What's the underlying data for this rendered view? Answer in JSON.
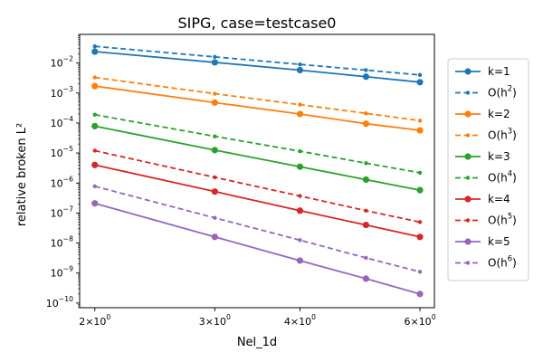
{
  "chart_data": {
    "type": "line",
    "title": "SIPG, case=testcase0",
    "xlabel": "Nel_1d",
    "ylabel": "relative broken L²",
    "xscale": "log",
    "yscale": "log",
    "xlim": [
      1.9,
      6.3
    ],
    "ylim": [
      7e-11,
      0.09
    ],
    "grid": false,
    "legend_position": "right, outside plot",
    "x": [
      2,
      3,
      4,
      5,
      6
    ],
    "x_tick_labels": [
      {
        "value": 2,
        "base": "2",
        "exp": "0"
      },
      {
        "value": 3,
        "base": "3",
        "exp": "0"
      },
      {
        "value": 4,
        "base": "4",
        "exp": "0"
      },
      {
        "value": 6,
        "base": "6",
        "exp": "0"
      }
    ],
    "y_tick_labels": [
      {
        "value": 1e-10,
        "base": "10",
        "exp": "−10"
      },
      {
        "value": 1e-09,
        "base": "10",
        "exp": "−9"
      },
      {
        "value": 1e-08,
        "base": "10",
        "exp": "−8"
      },
      {
        "value": 1e-07,
        "base": "10",
        "exp": "−7"
      },
      {
        "value": 1e-06,
        "base": "10",
        "exp": "−6"
      },
      {
        "value": 1e-05,
        "base": "10",
        "exp": "−5"
      },
      {
        "value": 0.0001,
        "base": "10",
        "exp": "−4"
      },
      {
        "value": 0.001,
        "base": "10",
        "exp": "−3"
      },
      {
        "value": 0.01,
        "base": "10",
        "exp": "−2"
      }
    ],
    "series": [
      {
        "name": "k=1",
        "label_base": "k=1",
        "label_exp": "",
        "color": "#1f77b4",
        "style": "solid",
        "marker": "circle",
        "values": [
          0.024,
          0.0105,
          0.0058,
          0.0035,
          0.0023
        ]
      },
      {
        "name": "O(h²)",
        "label_base": "O(h",
        "label_exp": "2",
        "color": "#1f77b4",
        "style": "dashed",
        "marker": "dot",
        "values": [
          0.036,
          0.016,
          0.009,
          0.0058,
          0.004
        ]
      },
      {
        "name": "k=2",
        "label_base": "k=2",
        "label_exp": "",
        "color": "#ff7f0e",
        "style": "solid",
        "marker": "circle",
        "values": [
          0.0017,
          0.00048,
          0.0002,
          9.5e-05,
          5.7e-05
        ]
      },
      {
        "name": "O(h³)",
        "label_base": "O(h",
        "label_exp": "3",
        "color": "#ff7f0e",
        "style": "dashed",
        "marker": "dot",
        "values": [
          0.0033,
          0.00095,
          0.00041,
          0.00021,
          0.00012
        ]
      },
      {
        "name": "k=3",
        "label_base": "k=3",
        "label_exp": "",
        "color": "#2ca02c",
        "style": "solid",
        "marker": "circle",
        "values": [
          7.9e-05,
          1.25e-05,
          3.5e-06,
          1.3e-06,
          5.8e-07
        ]
      },
      {
        "name": "O(h⁴)",
        "label_base": "O(h",
        "label_exp": "4",
        "color": "#2ca02c",
        "style": "dashed",
        "marker": "dot",
        "values": [
          0.00019,
          3.6e-05,
          1.15e-05,
          4.6e-06,
          2.2e-06
        ]
      },
      {
        "name": "k=4",
        "label_base": "k=4",
        "label_exp": "",
        "color": "#d62728",
        "style": "solid",
        "marker": "circle",
        "values": [
          4e-06,
          5.2e-07,
          1.2e-07,
          4e-08,
          1.6e-08
        ]
      },
      {
        "name": "O(h⁵)",
        "label_base": "O(h",
        "label_exp": "5",
        "color": "#d62728",
        "style": "dashed",
        "marker": "dot",
        "values": [
          1.2e-05,
          1.55e-06,
          3.7e-07,
          1.2e-07,
          5e-08
        ]
      },
      {
        "name": "k=5",
        "label_base": "k=5",
        "label_exp": "",
        "color": "#9467bd",
        "style": "solid",
        "marker": "circle",
        "values": [
          2.1e-07,
          1.6e-08,
          2.6e-09,
          6.5e-10,
          2e-10
        ]
      },
      {
        "name": "O(h⁶)",
        "label_base": "O(h",
        "label_exp": "6",
        "color": "#9467bd",
        "style": "dashed",
        "marker": "dot",
        "values": [
          7.8e-07,
          6.9e-08,
          1.25e-08,
          3.2e-09,
          1.1e-09
        ]
      }
    ]
  }
}
